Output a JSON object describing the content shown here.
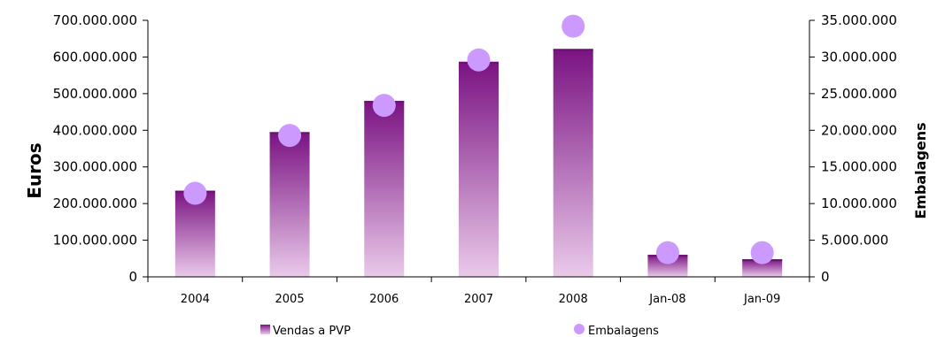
{
  "chart_data": {
    "type": "bar",
    "categories": [
      "2004",
      "2005",
      "2006",
      "2007",
      "2008",
      "Jan-08",
      "Jan-09"
    ],
    "series": [
      {
        "name": "Vendas a PVP",
        "type": "bar",
        "axis": "left",
        "values": [
          235000000,
          395000000,
          480000000,
          587000000,
          622000000,
          60000000,
          48000000
        ]
      },
      {
        "name": "Embalagens",
        "type": "scatter",
        "axis": "right",
        "values": [
          11400000,
          19300000,
          23400000,
          29600000,
          34200000,
          3300000,
          3300000
        ]
      }
    ],
    "ylabel": "Euros",
    "y2label": "Embalagens",
    "ylim": [
      0,
      700000000
    ],
    "y2lim": [
      0,
      35000000
    ],
    "yticks": [
      "0",
      "100.000.000",
      "200.000.000",
      "300.000.000",
      "400.000.000",
      "500.000.000",
      "600.000.000",
      "700.000.000"
    ],
    "y2ticks": [
      "0",
      "5.000.000",
      "10.000.000",
      "15.000.000",
      "20.000.000",
      "25.000.000",
      "30.000.000",
      "35.000.000"
    ],
    "legend_position": "bottom",
    "colors": {
      "bar_top": "#7a1282",
      "bar_bottom": "#eacaea",
      "bar_edge": "#6a1070",
      "marker": "#cc99ff",
      "axis": "#000000"
    }
  }
}
